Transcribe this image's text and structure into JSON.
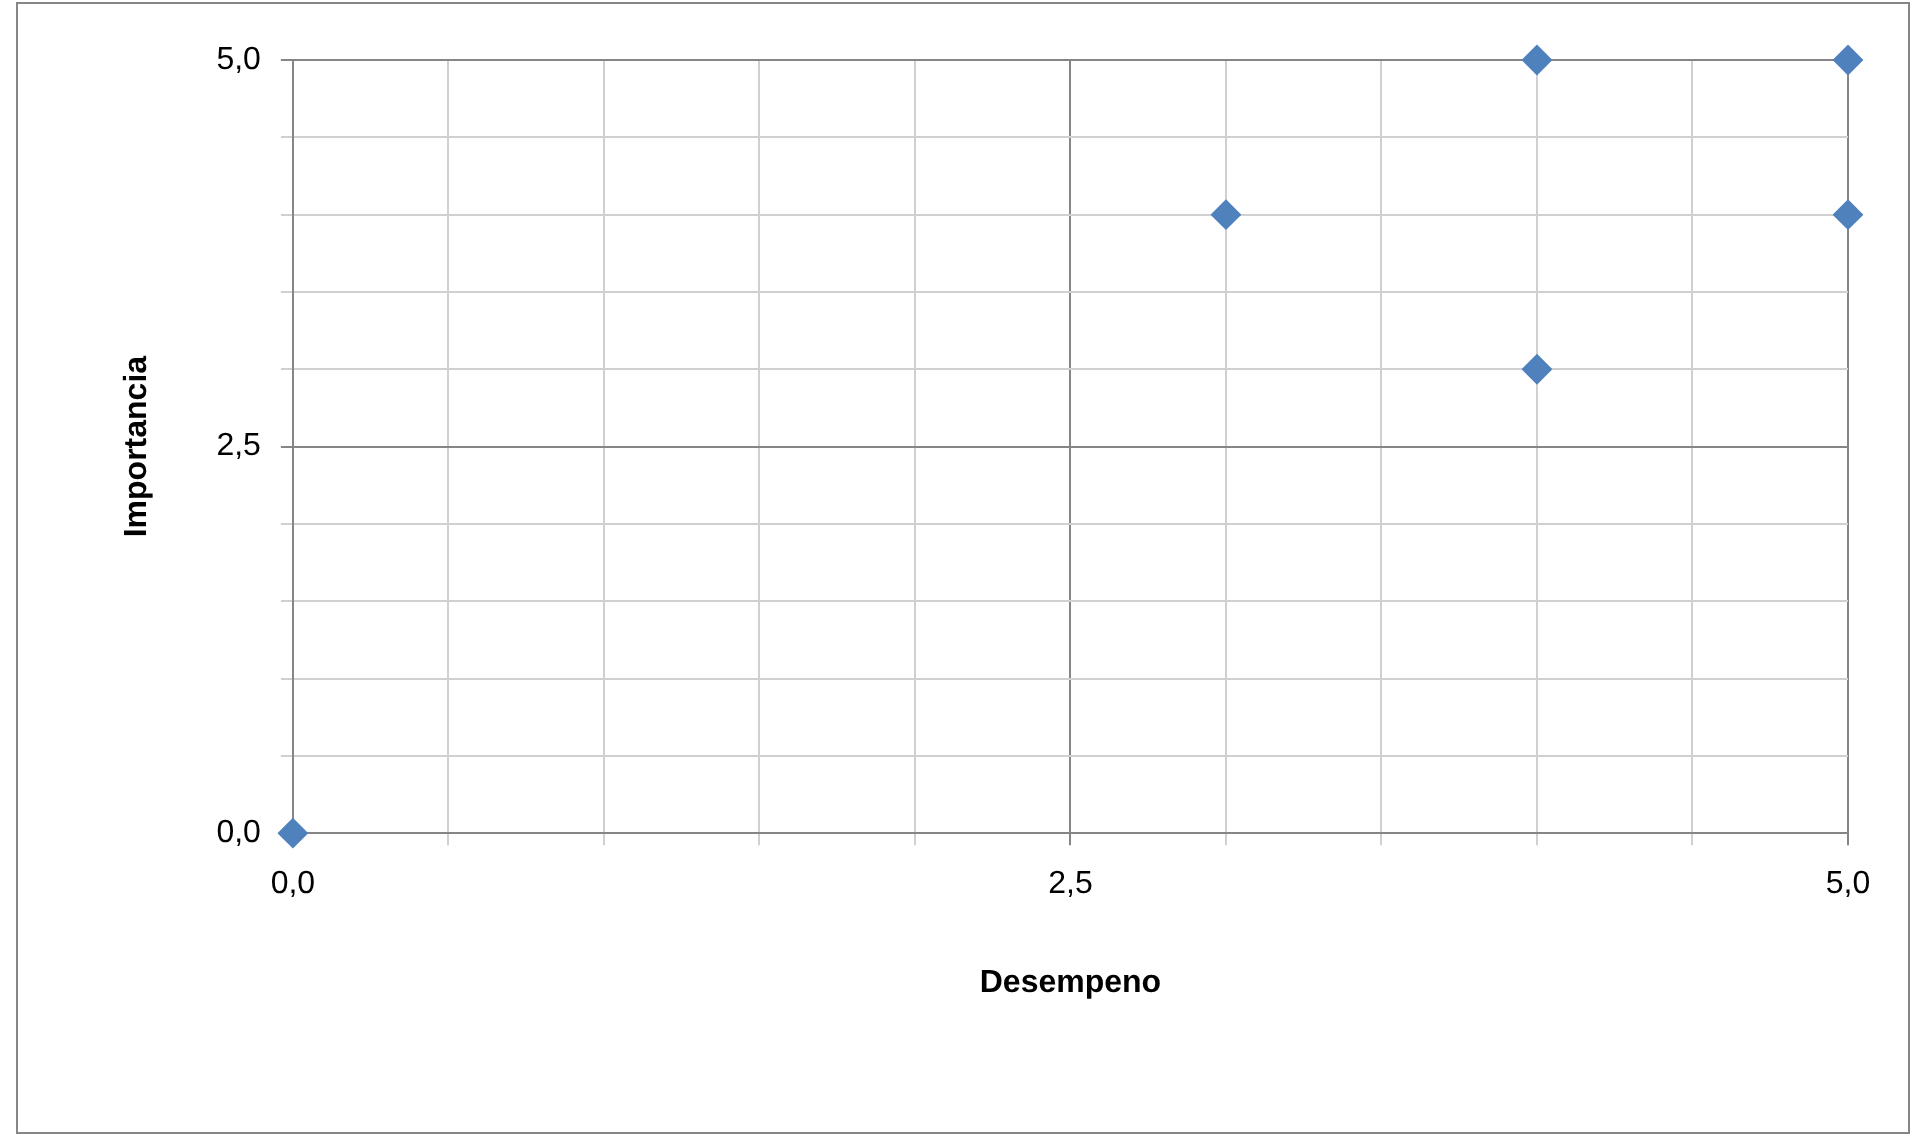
{
  "chart_data": {
    "type": "scatter",
    "xlabel": "Desempeno",
    "ylabel": "Importancia",
    "x": [
      0,
      3,
      4,
      4,
      5,
      5
    ],
    "series": [
      {
        "color": "#4f81bd",
        "values": [
          0,
          4,
          5,
          3,
          5,
          4
        ]
      }
    ],
    "xlim": [
      0,
      5
    ],
    "ylim": [
      0,
      5
    ],
    "xticks": [
      {
        "value": 0,
        "label": "0,0"
      },
      {
        "value": 0.5,
        "label": null
      },
      {
        "value": 1,
        "label": null
      },
      {
        "value": 1.5,
        "label": null
      },
      {
        "value": 2,
        "label": null
      },
      {
        "value": 2.5,
        "label": "2,5"
      },
      {
        "value": 3,
        "label": null
      },
      {
        "value": 3.5,
        "label": null
      },
      {
        "value": 4,
        "label": null
      },
      {
        "value": 4.5,
        "label": null
      },
      {
        "value": 5,
        "label": "5,0"
      }
    ],
    "yticks": [
      {
        "value": 0,
        "label": "0,0"
      },
      {
        "value": 0.5,
        "label": null
      },
      {
        "value": 1,
        "label": null
      },
      {
        "value": 1.5,
        "label": null
      },
      {
        "value": 2,
        "label": null
      },
      {
        "value": 2.5,
        "label": "2,5"
      },
      {
        "value": 3,
        "label": null
      },
      {
        "value": 3.5,
        "label": null
      },
      {
        "value": 4,
        "label": null
      },
      {
        "value": 4.5,
        "label": null
      },
      {
        "value": 5,
        "label": "5,0"
      }
    ],
    "grid": true,
    "legend": false,
    "marker": "diamond"
  }
}
